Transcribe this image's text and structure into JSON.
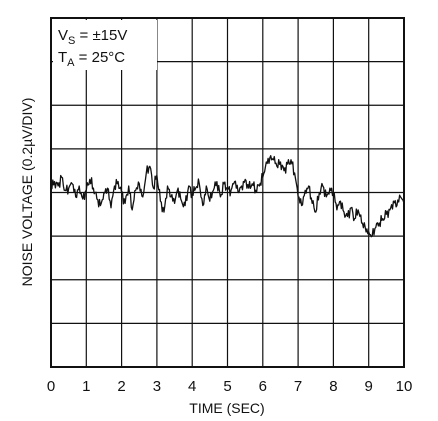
{
  "chart_data": {
    "type": "line",
    "xlabel": "TIME (SEC)",
    "ylabel": "NOISE VOLTAGE (0.2µV/DIV)",
    "xlim": [
      0,
      10
    ],
    "ylim": [
      -0.8,
      0.8
    ],
    "x_ticks": [
      "0",
      "1",
      "2",
      "3",
      "4",
      "5",
      "6",
      "7",
      "8",
      "9",
      "10"
    ],
    "grid": true,
    "annotations": {
      "vs_label": "V",
      "vs_sub": "S",
      "vs_value": " = ±15V",
      "ta_label": "T",
      "ta_sub": "A",
      "ta_value": " = 25°C"
    },
    "series": [
      {
        "x": [
          0,
          0.1,
          0.2,
          0.3,
          0.4,
          0.5,
          0.6,
          0.7,
          0.8,
          0.9,
          1.0,
          1.1,
          1.2,
          1.3,
          1.4,
          1.5,
          1.6,
          1.7,
          1.8,
          1.9,
          2.0,
          2.1,
          2.2,
          2.3,
          2.4,
          2.5,
          2.6,
          2.7,
          2.8,
          2.9,
          3.0,
          3.1,
          3.2,
          3.3,
          3.4,
          3.5,
          3.6,
          3.7,
          3.8,
          3.9,
          4.0,
          4.1,
          4.2,
          4.3,
          4.4,
          4.5,
          4.6,
          4.7,
          4.8,
          4.9,
          5.0,
          5.1,
          5.2,
          5.3,
          5.4,
          5.5,
          5.6,
          5.7,
          5.8,
          5.9,
          6.0,
          6.1,
          6.2,
          6.3,
          6.4,
          6.5,
          6.6,
          6.7,
          6.8,
          6.9,
          7.0,
          7.1,
          7.2,
          7.3,
          7.4,
          7.5,
          7.6,
          7.7,
          7.8,
          7.9,
          8.0,
          8.1,
          8.2,
          8.3,
          8.4,
          8.5,
          8.6,
          8.7,
          8.8,
          8.9,
          9.0,
          9.1,
          9.2,
          9.3,
          9.4,
          9.5,
          9.6,
          9.7,
          9.8,
          9.9,
          10.0
        ],
        "values": [
          0.02,
          0.05,
          0.03,
          0.07,
          0.01,
          0.02,
          0.04,
          -0.02,
          0.03,
          -0.03,
          0.01,
          0.06,
          0.02,
          -0.03,
          -0.06,
          0.0,
          0.02,
          -0.07,
          0.03,
          0.05,
          0.0,
          -0.05,
          0.03,
          -0.08,
          0.01,
          0.04,
          -0.02,
          0.09,
          0.12,
          0.02,
          0.08,
          -0.04,
          -0.09,
          0.03,
          -0.02,
          -0.05,
          0.02,
          -0.04,
          -0.06,
          0.03,
          -0.01,
          0.02,
          0.04,
          -0.06,
          0.03,
          -0.04,
          0.01,
          0.05,
          -0.02,
          0.04,
          0.02,
          0.01,
          0.05,
          0.0,
          0.03,
          0.06,
          0.02,
          0.04,
          0.01,
          0.03,
          0.07,
          0.14,
          0.16,
          0.15,
          0.12,
          0.14,
          0.1,
          0.13,
          0.15,
          0.09,
          -0.02,
          -0.06,
          0.01,
          0.03,
          -0.05,
          -0.09,
          0.0,
          0.03,
          -0.02,
          0.02,
          0.0,
          -0.08,
          -0.04,
          -0.09,
          -0.11,
          -0.07,
          -0.12,
          -0.08,
          -0.14,
          -0.16,
          -0.18,
          -0.2,
          -0.16,
          -0.14,
          -0.12,
          -0.1,
          -0.08,
          -0.04,
          -0.06,
          -0.02,
          -0.05
        ]
      }
    ]
  }
}
